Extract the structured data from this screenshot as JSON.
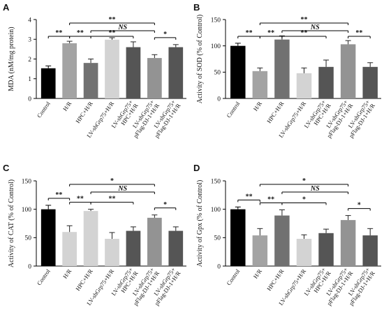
{
  "figure": {
    "title": ""
  },
  "chart_data": [
    {
      "panel": "A",
      "type": "bar",
      "ylabel": "MDA (nM/mg protein)",
      "ylim": [
        0,
        4
      ],
      "yticks": [
        "0",
        "1",
        "2",
        "3",
        "4"
      ],
      "categories": [
        "Control",
        "H/R",
        "HPC+H/R",
        "LV-shGrp75+H/R",
        "LV-shGrp75+ HPC+H/R",
        "LV-shGrp75+ pFlag-DJ-1+H/R",
        "LV-shGrp75+ pFlag-DJ-1+H/R"
      ],
      "values": [
        1.53,
        2.8,
        1.8,
        2.98,
        2.6,
        2.05,
        2.6
      ],
      "errors": [
        0.12,
        0.1,
        0.2,
        0.1,
        0.27,
        0.17,
        0.13
      ],
      "colors": [
        "#000000",
        "#a3a3a3",
        "#717171",
        "#d3d3d3",
        "#555555",
        "#939393",
        "#555555"
      ],
      "comparisons": [
        {
          "from": 0,
          "to": 1,
          "label": "**",
          "level": 0
        },
        {
          "from": 1,
          "to": 2,
          "label": "**",
          "level": 0
        },
        {
          "from": 2,
          "to": 4,
          "label": "**",
          "level": 0
        },
        {
          "from": 5,
          "to": 6,
          "label": "*",
          "level": 0
        },
        {
          "from": 2,
          "to": 5,
          "label": "NS",
          "level": 1
        },
        {
          "from": 1,
          "to": 5,
          "label": "**",
          "level": 2
        }
      ]
    },
    {
      "panel": "B",
      "type": "bar",
      "ylabel": "Activity of SOD (% of Control)",
      "ylim": [
        0,
        150
      ],
      "yticks": [
        "0",
        "50",
        "100",
        "150"
      ],
      "categories": [
        "Control",
        "H/R",
        "HPC+H/R",
        "LV-shGrp75+H/R",
        "LV-shGrp75+ HPC+H/R",
        "LV-shGrp75+ pFlag-DJ-1+H/R",
        "LV-shGrp75+ pFlag-DJ-1+H/R"
      ],
      "values": [
        100,
        52,
        112,
        48,
        60,
        103,
        60
      ],
      "errors": [
        5,
        6,
        7,
        10,
        13,
        7,
        8
      ],
      "colors": [
        "#000000",
        "#a3a3a3",
        "#717171",
        "#d3d3d3",
        "#555555",
        "#939393",
        "#555555"
      ],
      "comparisons": [
        {
          "from": 0,
          "to": 1,
          "label": "**",
          "level": 0
        },
        {
          "from": 1,
          "to": 2,
          "label": "**",
          "level": 0
        },
        {
          "from": 2,
          "to": 4,
          "label": "**",
          "level": 0
        },
        {
          "from": 5,
          "to": 6,
          "label": "**",
          "level": 0
        },
        {
          "from": 2,
          "to": 5,
          "label": "NS",
          "level": 1
        },
        {
          "from": 1,
          "to": 5,
          "label": "**",
          "level": 2
        }
      ]
    },
    {
      "panel": "C",
      "type": "bar",
      "ylabel": "Activity of CAT (% of Control)",
      "ylim": [
        0,
        150
      ],
      "yticks": [
        "0",
        "50",
        "100",
        "150"
      ],
      "categories": [
        "Control",
        "H/R",
        "HPC+H/R",
        "LV-shGrp75+H/R",
        "LV-shGrp75+ HPC+H/R",
        "LV-shGrp75+ pFlag-DJ-1+H/R",
        "LV-shGrp75+ pFlag-DJ-1+H/R"
      ],
      "values": [
        100,
        60,
        97,
        48,
        62,
        85,
        62
      ],
      "errors": [
        7,
        11,
        3,
        11,
        7,
        5,
        7
      ],
      "colors": [
        "#000000",
        "#d3d3d3",
        "#d3d3d3",
        "#d3d3d3",
        "#555555",
        "#939393",
        "#555555"
      ],
      "comparisons": [
        {
          "from": 0,
          "to": 1,
          "label": "**",
          "level": 0
        },
        {
          "from": 1,
          "to": 2,
          "label": "**",
          "level": 0
        },
        {
          "from": 2,
          "to": 4,
          "label": "**",
          "level": 0
        },
        {
          "from": 5,
          "to": 6,
          "label": "*",
          "level": 0
        },
        {
          "from": 2,
          "to": 5,
          "label": "NS",
          "level": 1
        },
        {
          "from": 1,
          "to": 5,
          "label": "*",
          "level": 2
        }
      ]
    },
    {
      "panel": "D",
      "type": "bar",
      "ylabel": "Activity of Gpx (% of Control)",
      "ylim": [
        0,
        150
      ],
      "yticks": [
        "0",
        "50",
        "100",
        "150"
      ],
      "categories": [
        "Control",
        "H/R",
        "HPC+H/R",
        "LV-shGrp75+H/R",
        "LV-shGrp75+ HPC+H/R",
        "LV-shGrp75+ pFlag-DJ-1+H/R",
        "LV-shGrp75+ pFlag-DJ-1+H/R"
      ],
      "values": [
        100,
        54,
        89,
        48,
        58,
        81,
        54
      ],
      "errors": [
        4,
        12,
        10,
        7,
        7,
        8,
        12
      ],
      "colors": [
        "#000000",
        "#a3a3a3",
        "#717171",
        "#d3d3d3",
        "#555555",
        "#939393",
        "#555555"
      ],
      "comparisons": [
        {
          "from": 0,
          "to": 1,
          "label": "**",
          "level": 0
        },
        {
          "from": 1,
          "to": 2,
          "label": "**",
          "level": 0
        },
        {
          "from": 2,
          "to": 4,
          "label": "*",
          "level": 0
        },
        {
          "from": 5,
          "to": 6,
          "label": "*",
          "level": 0
        },
        {
          "from": 2,
          "to": 5,
          "label": "NS",
          "level": 1
        },
        {
          "from": 1,
          "to": 5,
          "label": "*",
          "level": 2
        }
      ]
    }
  ]
}
